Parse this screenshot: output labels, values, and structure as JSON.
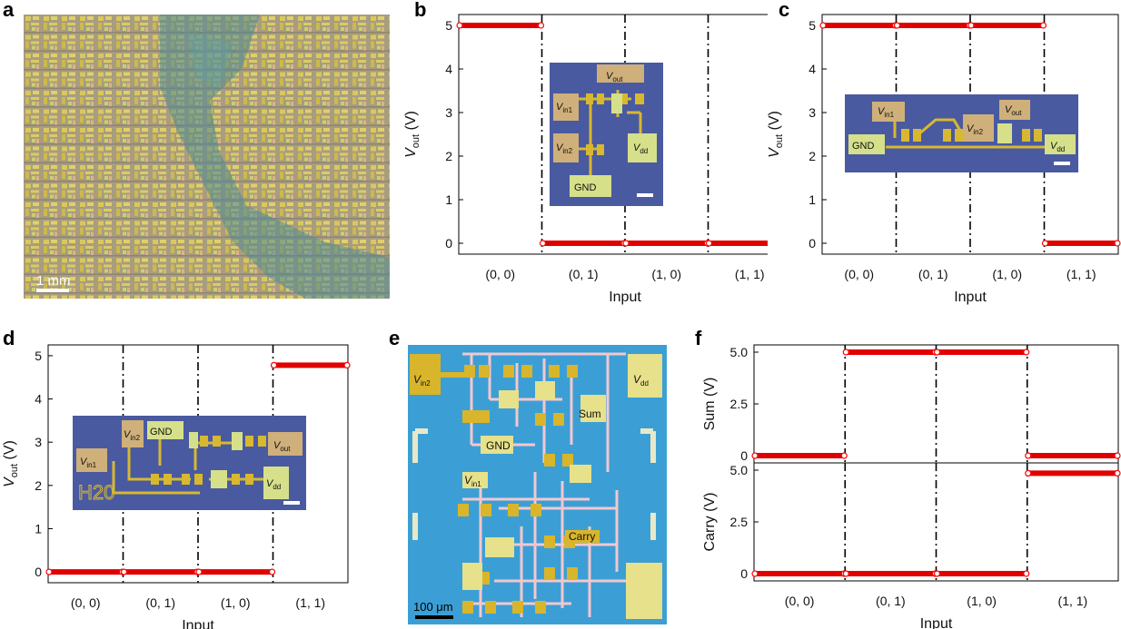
{
  "panel_labels": {
    "a": "a",
    "b": "b",
    "c": "c",
    "d": "d",
    "e": "e",
    "f": "f"
  },
  "panel_a": {
    "scale_bar": "1 mm",
    "colors": {
      "bg": "#a49a7e",
      "grid": "#d8c860",
      "flake": "#5d8f94"
    }
  },
  "panel_e": {
    "scale_bar": "100 μm",
    "labels": {
      "vin2": "V",
      "vin2_sub": "in2",
      "vdd": "V",
      "vdd_sub": "dd",
      "sum": "Sum",
      "gnd": "GND",
      "vin1": "V",
      "vin1_sub": "in1",
      "carry": "Carry"
    },
    "colors": {
      "bg": "#3aa0d6",
      "trace": "#f4c8cf",
      "pad": "#e8e28a",
      "gold": "#d9b52a"
    }
  },
  "insets": {
    "b": {
      "vout": "V",
      "vout_sub": "out",
      "vin1": "V",
      "vin1_sub": "in1",
      "vin2": "V",
      "vin2_sub": "in2",
      "vdd": "V",
      "vdd_sub": "dd",
      "gnd": "GND"
    },
    "c": {
      "vin1": "V",
      "vin1_sub": "in1",
      "vin2": "V",
      "vin2_sub": "in2",
      "vout": "V",
      "vout_sub": "out",
      "gnd": "GND",
      "vdd": "V",
      "vdd_sub": "dd"
    },
    "d": {
      "vin2": "V",
      "vin2_sub": "in2",
      "gnd": "GND",
      "vout": "V",
      "vout_sub": "out",
      "vin1": "V",
      "vin1_sub": "in1",
      "vdd": "V",
      "vdd_sub": "dd",
      "chip_id": "H20"
    }
  },
  "colors": {
    "trace": "#e00000",
    "marker_edge": "#ff0000",
    "inset_bg": "#4a5aa0",
    "inset_pad": "#cfb07a",
    "inset_pad_light": "#d6e08a",
    "inset_gold": "#d8b830"
  },
  "chart_data": [
    {
      "id": "b",
      "type": "line",
      "categories": [
        "(0, 0)",
        "(0, 1)",
        "(1, 0)",
        "(1, 1)"
      ],
      "values": [
        5,
        0,
        0,
        0
      ],
      "xlabel": "Input",
      "ylabel": "V",
      "ylabel_sub": "out",
      "ylabel_unit": " (V)",
      "ylim": [
        -0.25,
        5.25
      ],
      "yticks": [
        0,
        1,
        2,
        3,
        4,
        5
      ],
      "ytick_labels": [
        "0",
        "1",
        "2",
        "3",
        "4",
        "5"
      ]
    },
    {
      "id": "c",
      "type": "line",
      "categories": [
        "(0, 0)",
        "(0, 1)",
        "(1, 0)",
        "(1, 1)"
      ],
      "values": [
        5,
        5,
        5,
        0
      ],
      "xlabel": "Input",
      "ylabel": "V",
      "ylabel_sub": "out",
      "ylabel_unit": " (V)",
      "ylim": [
        -0.25,
        5.25
      ],
      "yticks": [
        0,
        1,
        2,
        3,
        4,
        5
      ],
      "ytick_labels": [
        "0",
        "1",
        "2",
        "3",
        "4",
        "5"
      ]
    },
    {
      "id": "d",
      "type": "line",
      "categories": [
        "(0, 0)",
        "(0, 1)",
        "(1, 0)",
        "(1, 1)"
      ],
      "values": [
        0,
        0,
        0,
        4.78
      ],
      "xlabel": "Input",
      "ylabel": "V",
      "ylabel_sub": "out",
      "ylabel_unit": " (V)",
      "ylim": [
        -0.25,
        5.25
      ],
      "yticks": [
        0,
        1,
        2,
        3,
        4,
        5
      ],
      "ytick_labels": [
        "0",
        "1",
        "2",
        "3",
        "4",
        "5"
      ]
    },
    {
      "id": "f-sum",
      "type": "line",
      "categories": [
        "(0, 0)",
        "(0, 1)",
        "(1, 0)",
        "(1, 1)"
      ],
      "values": [
        0,
        5,
        5,
        0
      ],
      "xlabel": "",
      "ylabel": "Sum (V)",
      "ylim": [
        -0.35,
        5.35
      ],
      "yticks": [
        0,
        2.5,
        5
      ],
      "ytick_labels": [
        "0",
        "2.5",
        "5.0"
      ]
    },
    {
      "id": "f-carry",
      "type": "line",
      "categories": [
        "(0, 0)",
        "(0, 1)",
        "(1, 0)",
        "(1, 1)"
      ],
      "values": [
        0,
        0,
        0,
        4.85
      ],
      "xlabel": "Input",
      "ylabel": "Carry (V)",
      "ylim": [
        -0.35,
        5.35
      ],
      "yticks": [
        0,
        2.5,
        5
      ],
      "ytick_labels": [
        "0",
        "2.5",
        "5.0"
      ]
    }
  ]
}
